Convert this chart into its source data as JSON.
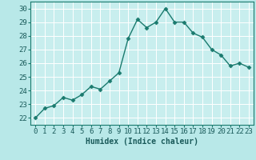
{
  "x": [
    0,
    1,
    2,
    3,
    4,
    5,
    6,
    7,
    8,
    9,
    10,
    11,
    12,
    13,
    14,
    15,
    16,
    17,
    18,
    19,
    20,
    21,
    22,
    23
  ],
  "y": [
    22.0,
    22.7,
    22.9,
    23.5,
    23.3,
    23.7,
    24.3,
    24.1,
    24.7,
    25.3,
    27.8,
    29.2,
    28.6,
    29.0,
    30.0,
    29.0,
    29.0,
    28.2,
    27.9,
    27.0,
    26.6,
    25.8,
    26.0,
    25.7
  ],
  "line_color": "#1a7a6e",
  "bg_color": "#b8e8e8",
  "plot_bg_color": "#c8eeee",
  "grid_color": "#e8f8f8",
  "bottom_bar_color": "#5a9a9a",
  "xlabel": "Humidex (Indice chaleur)",
  "ylim": [
    21.5,
    30.5
  ],
  "xlim": [
    -0.5,
    23.5
  ],
  "yticks": [
    22,
    23,
    24,
    25,
    26,
    27,
    28,
    29,
    30
  ],
  "xticks": [
    0,
    1,
    2,
    3,
    4,
    5,
    6,
    7,
    8,
    9,
    10,
    11,
    12,
    13,
    14,
    15,
    16,
    17,
    18,
    19,
    20,
    21,
    22,
    23
  ],
  "xlabel_fontsize": 7,
  "tick_fontsize": 6.5,
  "marker_size": 2.5,
  "line_width": 1.0
}
